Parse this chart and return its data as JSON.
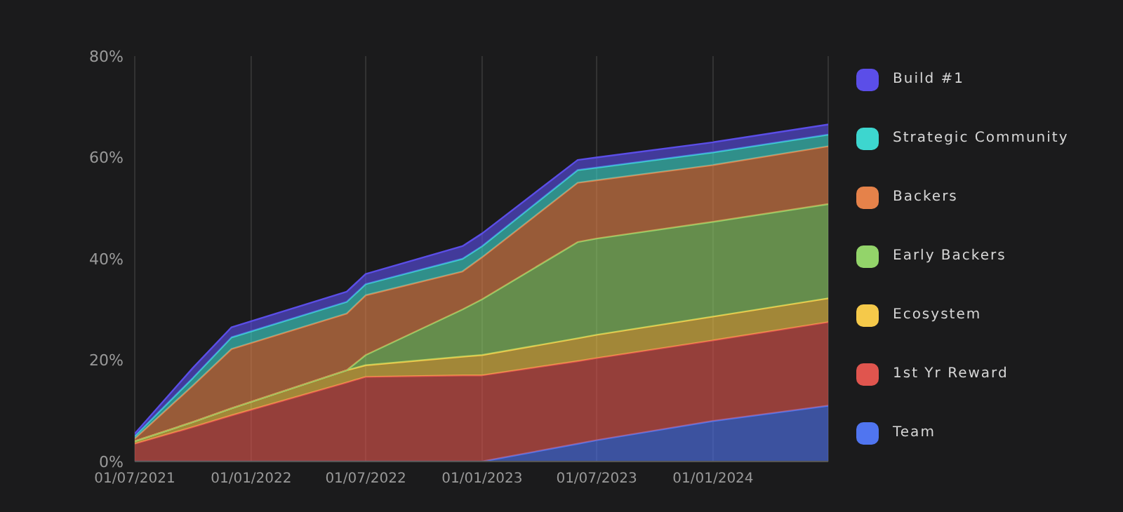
{
  "chart_data": {
    "type": "area",
    "stacked": true,
    "x": [
      "2021-07-01",
      "2021-10-01",
      "2021-12-01",
      "2022-06-01",
      "2022-07-01",
      "2022-12-01",
      "2023-01-01",
      "2023-06-01",
      "2023-07-01",
      "2024-01-01",
      "2024-07-01"
    ],
    "series": [
      {
        "name": "Team",
        "color": "#5075f0",
        "values": [
          0,
          0,
          0,
          0,
          0,
          0,
          0,
          3.5,
          4.2,
          8,
          11
        ]
      },
      {
        "name": "1st Yr Reward",
        "color": "#e0554e",
        "values": [
          3.5,
          6.8,
          9.1,
          15.6,
          16.7,
          17,
          17,
          16.3,
          16.2,
          15.9,
          16.5
        ]
      },
      {
        "name": "Ecosystem",
        "color": "#f5c94a",
        "values": [
          0.5,
          1,
          1.4,
          2.4,
          2.3,
          3.7,
          4,
          4.5,
          4.6,
          4.7,
          4.7
        ]
      },
      {
        "name": "Early Backers",
        "color": "#93d46a",
        "values": [
          0,
          0,
          0,
          0,
          2,
          9.3,
          11,
          19,
          19,
          18.7,
          18.6
        ]
      },
      {
        "name": "Backers",
        "color": "#e5824a",
        "values": [
          0.5,
          7.2,
          11.7,
          11.2,
          11.8,
          7.5,
          8.3,
          11.7,
          11.5,
          11.2,
          11.4
        ]
      },
      {
        "name": "Strategic Community",
        "color": "#3dd6cf",
        "values": [
          0.5,
          1.5,
          2.3,
          2.3,
          2.2,
          2.5,
          2.2,
          2.5,
          2.5,
          2.5,
          2.3
        ]
      },
      {
        "name": "Build #1",
        "color": "#5b4ee8",
        "values": [
          0.5,
          2,
          2,
          2,
          2,
          2.5,
          2.5,
          2,
          2,
          2,
          2
        ]
      }
    ],
    "xlim": [
      "2021-07-01",
      "2024-07-01"
    ],
    "xticks": [
      {
        "value": "2021-07-01",
        "label": "01/07/2021"
      },
      {
        "value": "2022-01-01",
        "label": "01/01/2022"
      },
      {
        "value": "2022-07-01",
        "label": "01/07/2022"
      },
      {
        "value": "2023-01-01",
        "label": "01/01/2023"
      },
      {
        "value": "2023-07-01",
        "label": "01/07/2023"
      },
      {
        "value": "2024-01-01",
        "label": "01/01/2024"
      }
    ],
    "ylim": [
      0,
      80
    ],
    "yticks": [
      {
        "value": 0,
        "label": "0%"
      },
      {
        "value": 20,
        "label": "20%"
      },
      {
        "value": 40,
        "label": "40%"
      },
      {
        "value": 60,
        "label": "60%"
      },
      {
        "value": 80,
        "label": "80%"
      }
    ],
    "grid": "x",
    "legend": "right",
    "marker": "none"
  }
}
